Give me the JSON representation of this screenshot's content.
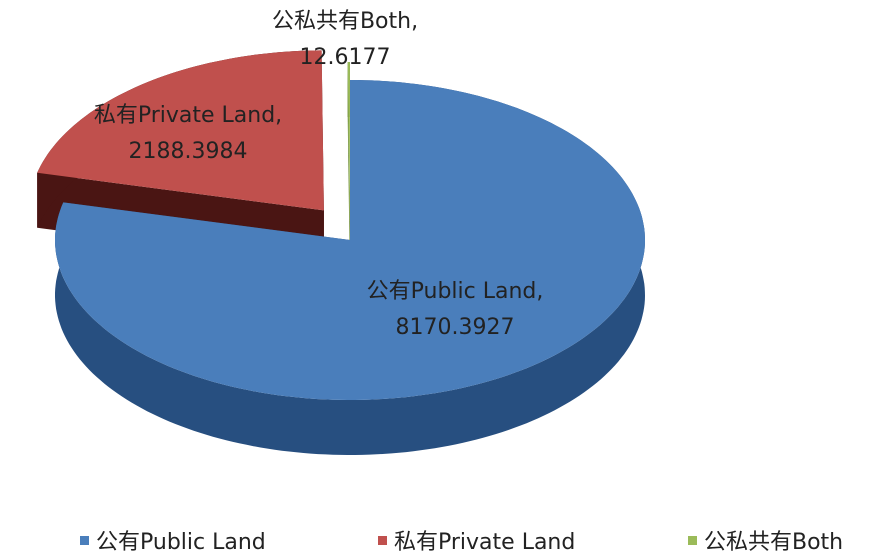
{
  "chart_data": {
    "type": "pie3d",
    "categories": [
      "公有Public Land",
      "私有Private Land",
      "公私共有Both"
    ],
    "values": [
      8170.3927,
      2188.3984,
      12.6177
    ],
    "colors": [
      "#4a7ebb",
      "#c0504d",
      "#9bbb59"
    ],
    "side_colors": [
      "#274f80",
      "#4a1513",
      "#6a8a30"
    ],
    "label_separator": ",",
    "legend": "bottom"
  }
}
